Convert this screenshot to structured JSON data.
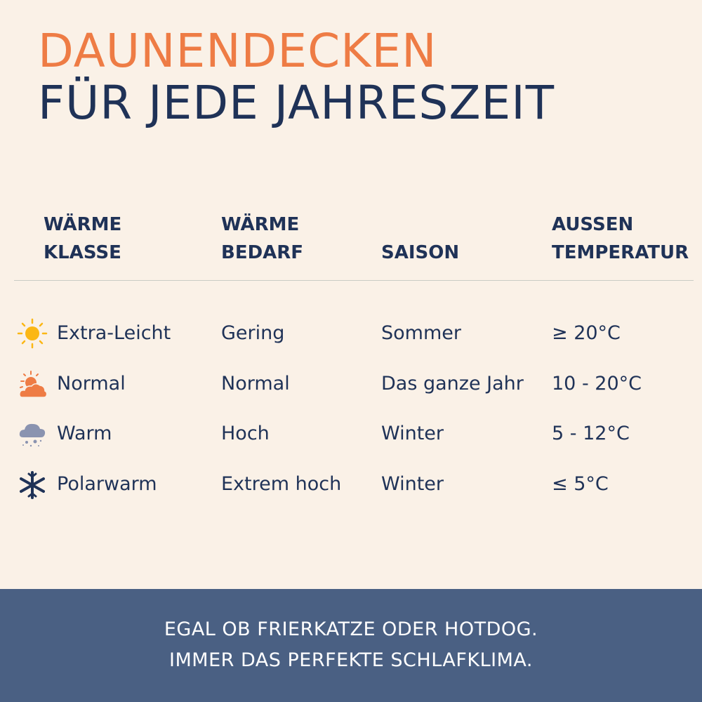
{
  "title": {
    "line1": "DAUNENDECKEN",
    "line2": "FÜR JEDE JAHRESZEIT"
  },
  "colors": {
    "background": "#faf1e7",
    "navy": "#1f3257",
    "orange": "#ee7c45",
    "footer": "#4a6083",
    "sun": "#fbb715",
    "cloud_grey": "#8a93b0"
  },
  "table": {
    "headers": [
      {
        "line1": "WÄRME",
        "line2": "KLASSE"
      },
      {
        "line1": "WÄRME",
        "line2": "BEDARF"
      },
      {
        "line1": "",
        "line2": "SAISON"
      },
      {
        "line1": "AUSSEN",
        "line2": "TEMPERATUR"
      }
    ],
    "rows": [
      {
        "icon": "sun-icon",
        "klasse": "Extra-Leicht",
        "bedarf": "Gering",
        "saison": "Sommer",
        "temperatur": "≥ 20°C"
      },
      {
        "icon": "sun-behind-cloud-icon",
        "klasse": "Normal",
        "bedarf": "Normal",
        "saison": "Das ganze Jahr",
        "temperatur": "10 - 20°C"
      },
      {
        "icon": "snow-cloud-icon",
        "klasse": "Warm",
        "bedarf": "Hoch",
        "saison": "Winter",
        "temperatur": "5 - 12°C"
      },
      {
        "icon": "snowflake-icon",
        "klasse": "Polarwarm",
        "bedarf": "Extrem hoch",
        "saison": "Winter",
        "temperatur": "≤ 5°C"
      }
    ]
  },
  "footer": {
    "line1": "EGAL OB FRIERKATZE ODER HOTDOG.",
    "line2": "IMMER DAS PERFEKTE SCHLAFKLIMA."
  }
}
